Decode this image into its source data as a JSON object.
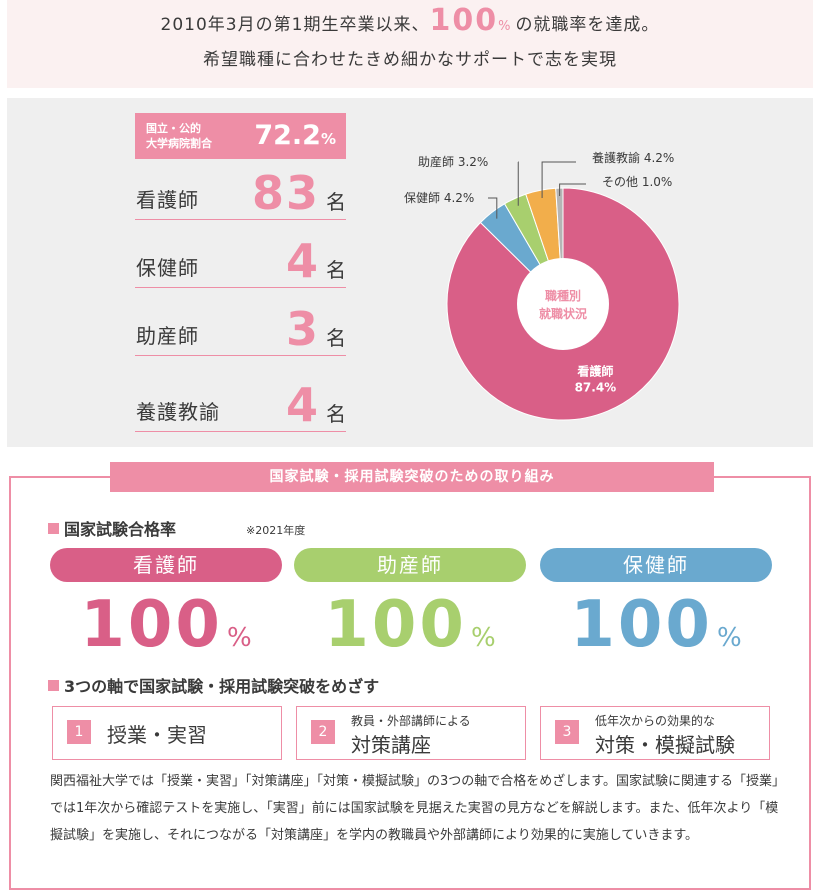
{
  "header": {
    "line1_pre": "2010年3月の第1期生卒業以来、",
    "line1_big": "100",
    "line1_pct": "%",
    "line1_post": "の就職率を達成。",
    "line2": "希望職種に合わせたきめ細かなサポートで志を実現"
  },
  "employment": {
    "ratio_label": "国立・公的\n大学病院割合",
    "ratio_value": "72.2",
    "ratio_unit": "%",
    "counts": [
      {
        "label": "看護師",
        "value": "83",
        "unit": "名"
      },
      {
        "label": "保健師",
        "value": "4",
        "unit": "名"
      },
      {
        "label": "助産師",
        "value": "3",
        "unit": "名"
      },
      {
        "label": "養護教諭",
        "value": "4",
        "unit": "名"
      }
    ]
  },
  "chart_data": {
    "type": "pie",
    "center_label": [
      "職種別",
      "就職状況"
    ],
    "slices": [
      {
        "label": "看護師",
        "value": 87.4,
        "display": "87.4%",
        "color": "#d95f87"
      },
      {
        "label": "保健師",
        "value": 4.2,
        "display": "4.2%",
        "color": "#6aa9cf"
      },
      {
        "label": "助産師",
        "value": 3.2,
        "display": "3.2%",
        "color": "#a8cf6e"
      },
      {
        "label": "養護教諭",
        "value": 4.2,
        "display": "4.2%",
        "color": "#f2ae4b"
      },
      {
        "label": "その他",
        "value": 1.0,
        "display": "1.0%",
        "color": "#b5b5b5"
      }
    ]
  },
  "exam": {
    "title": "国家試験・採用試験突破のための取り組み",
    "pass_heading": "国家試験合格率",
    "pass_note": "※2021年度",
    "results": [
      {
        "name": "看護師",
        "value": "100",
        "unit": "%",
        "color": "#d95f87"
      },
      {
        "name": "助産師",
        "value": "100",
        "unit": "%",
        "color": "#a8cf6e"
      },
      {
        "name": "保健師",
        "value": "100",
        "unit": "%",
        "color": "#6aa9cf"
      }
    ],
    "axes_heading": "3つの軸で国家試験・採用試験突破をめざす",
    "axes": [
      {
        "num": "1",
        "sub": "",
        "main": "授業・実習"
      },
      {
        "num": "2",
        "sub": "教員・外部講師による",
        "main": "対策講座"
      },
      {
        "num": "3",
        "sub": "低年次からの効果的な",
        "main": "対策・模擬試験"
      }
    ],
    "description": "関西福祉大学では「授業・実習」「対策講座」「対策・模擬試験」の3つの軸で合格をめざします。国家試験に関連する「授業」では1年次から確認テストを実施し、「実習」前には国家試験を見据えた実習の見方などを解説します。また、低年次より「模擬試験」を実施し、それにつながる「対策講座」を学内の教職員や外部講師により効果的に実施していきます。"
  }
}
